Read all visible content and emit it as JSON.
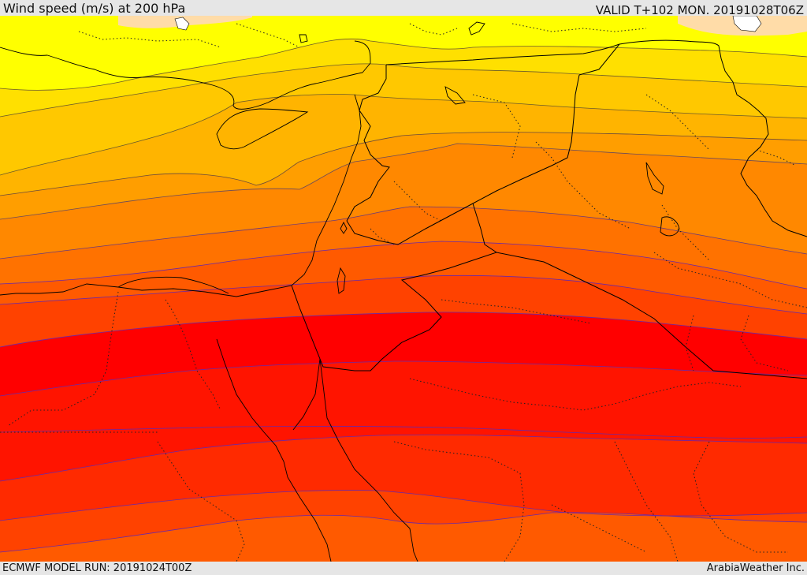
{
  "header": {
    "title": "Wind speed (m/s) at 200 hPa",
    "valid_time": "VALID T+102 MON. 20191028T06Z"
  },
  "footer": {
    "model_run": "ECMWF MODEL RUN: 20191024T00Z",
    "credit": "ArabiaWeather Inc."
  },
  "map": {
    "field": "wind speed",
    "level": "200 hPa",
    "contour_colors": [
      "#ffdca8",
      "#ffff00",
      "#ffe000",
      "#ffc800",
      "#ffb400",
      "#ff9e00",
      "#ff8800",
      "#ff7200",
      "#ff5a00",
      "#ff4200",
      "#ff2a00",
      "#ff1400",
      "#ff0000"
    ],
    "line_color_low": "#6b5a2a",
    "line_color_high": "#6a28a8"
  }
}
